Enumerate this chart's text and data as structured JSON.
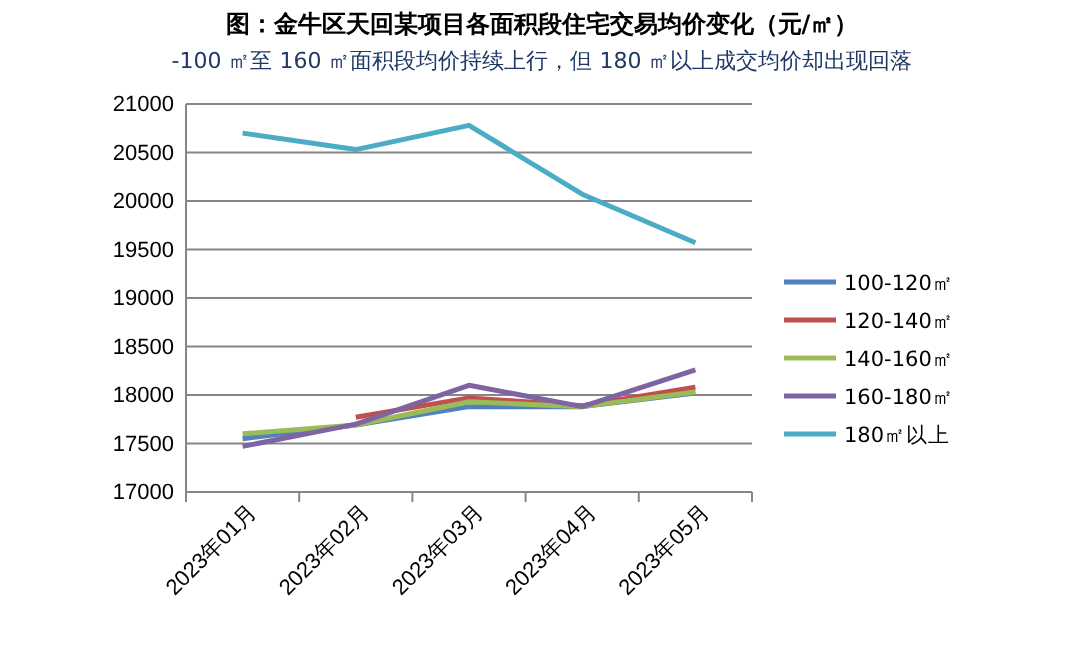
{
  "chart_data": {
    "type": "line",
    "title": "图：金牛区天回某项目各面积段住宅交易均价变化（元/㎡）",
    "subtitle": "-100 ㎡至 160 ㎡面积段均价持续上行，但 180 ㎡以上成交均价却出现回落",
    "categories": [
      "2023年01月",
      "2023年02月",
      "2023年03月",
      "2023年04月",
      "2023年05月"
    ],
    "series": [
      {
        "name": "100-120㎡",
        "color": "#4f81bd",
        "values": [
          17550,
          17690,
          17880,
          17880,
          18020
        ]
      },
      {
        "name": "120-140㎡",
        "color": "#c0504d",
        "values": [
          null,
          17770,
          17970,
          17890,
          18080
        ]
      },
      {
        "name": "140-160㎡",
        "color": "#9bbb59",
        "values": [
          17600,
          17690,
          17930,
          17880,
          18030
        ]
      },
      {
        "name": "160-180㎡",
        "color": "#8064a2",
        "values": [
          17470,
          17700,
          18100,
          17880,
          18260
        ]
      },
      {
        "name": "180㎡以上",
        "color": "#4bacc6",
        "values": [
          20700,
          20530,
          20780,
          20070,
          19570
        ]
      }
    ],
    "ylim": [
      17000,
      21000
    ],
    "yticks": [
      17000,
      17500,
      18000,
      18500,
      19000,
      19500,
      20000,
      20500,
      21000
    ],
    "grid": "y",
    "legend": "right",
    "marker": "none",
    "line_style": "solid"
  }
}
